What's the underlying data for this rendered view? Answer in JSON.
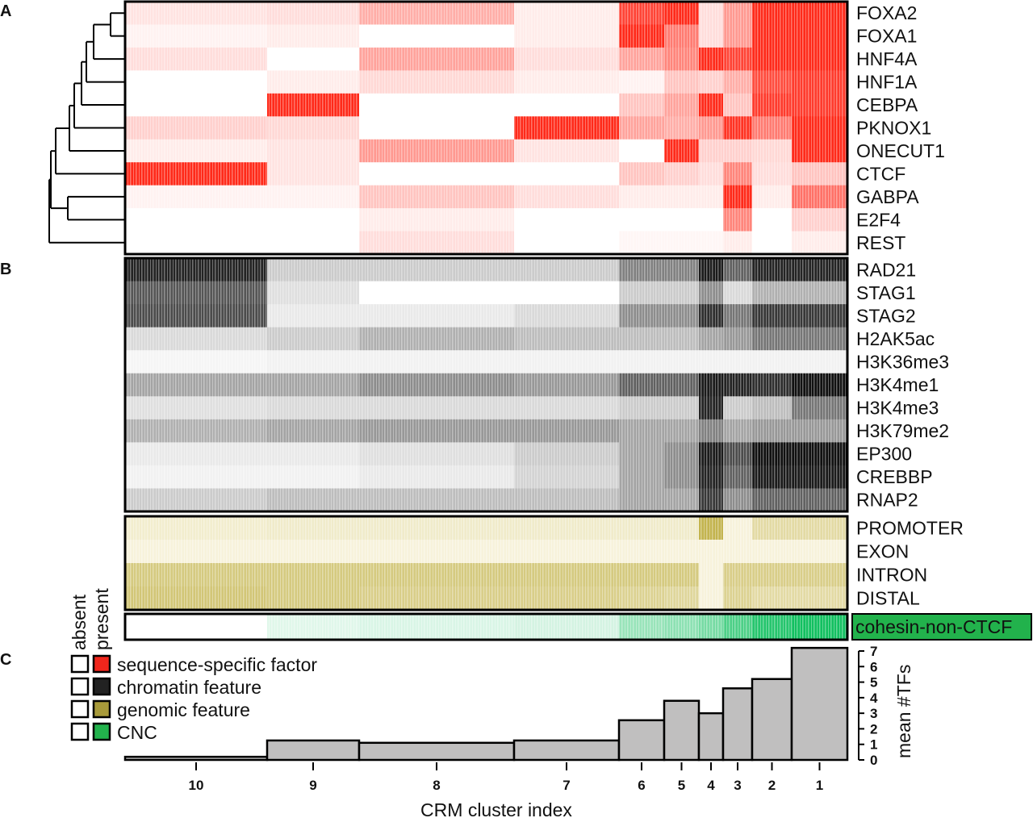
{
  "panels": {
    "a": "A",
    "b": "B",
    "c": "C"
  },
  "legend": {
    "absent": "absent",
    "present": "present",
    "items": [
      {
        "label": "sequence-specific factor",
        "color": "#f0261c"
      },
      {
        "label": "chromatin feature",
        "color": "#222222"
      },
      {
        "label": "genomic feature",
        "color": "#a89a3a"
      },
      {
        "label": "CNC",
        "color": "#22b24c"
      }
    ]
  },
  "chart_data": [
    {
      "type": "heatmap",
      "panel": "A",
      "color": "#ff2a1a",
      "columns": [
        "10",
        "9",
        "8",
        "7",
        "6",
        "5",
        "4",
        "3",
        "2",
        "1"
      ],
      "rows": [
        {
          "label": "FOXA2",
          "values": [
            0.08,
            0.1,
            0.3,
            0.05,
            0.85,
            1,
            0.1,
            0.4,
            1,
            1
          ]
        },
        {
          "label": "FOXA1",
          "values": [
            0.03,
            0.05,
            0,
            0.05,
            1,
            0.55,
            0.1,
            0.4,
            1,
            1
          ]
        },
        {
          "label": "HNF4A",
          "values": [
            0.1,
            0,
            0.35,
            0.1,
            0.35,
            0.5,
            1,
            0.85,
            1,
            1
          ]
        },
        {
          "label": "HNF1A",
          "values": [
            0,
            0.05,
            0.12,
            0.05,
            0.03,
            0.2,
            0.15,
            0.3,
            0.8,
            0.9
          ]
        },
        {
          "label": "CEBPA",
          "values": [
            0,
            1,
            0,
            0,
            0.2,
            0.35,
            1,
            0.2,
            0.9,
            0.9
          ]
        },
        {
          "label": "PKNOX1",
          "values": [
            0.15,
            0.12,
            0,
            1,
            0.35,
            0.3,
            0.4,
            0.95,
            0.55,
            1
          ]
        },
        {
          "label": "ONECUT1",
          "values": [
            0.05,
            0.08,
            0.4,
            0.08,
            0,
            1,
            0.15,
            0.15,
            0.12,
            1
          ]
        },
        {
          "label": "CTCF",
          "values": [
            1,
            0.08,
            0,
            0,
            0.2,
            0.15,
            0.1,
            0.5,
            0.1,
            0.2
          ]
        },
        {
          "label": "GABPA",
          "values": [
            0.03,
            0.03,
            0.2,
            0.1,
            0.05,
            0.05,
            0.05,
            1,
            0.05,
            0.6
          ]
        },
        {
          "label": "E2F4",
          "values": [
            0,
            0,
            0.05,
            0,
            0,
            0,
            0,
            0.5,
            0,
            0.15
          ]
        },
        {
          "label": "REST",
          "values": [
            0,
            0,
            0.1,
            0,
            0.02,
            0.02,
            0.02,
            0.05,
            0,
            0.05
          ]
        }
      ],
      "dendrogram": "hierarchical clustering of rows (left)"
    },
    {
      "type": "heatmap",
      "panel": "B",
      "color": "#111111",
      "columns": [
        "10",
        "9",
        "8",
        "7",
        "6",
        "5",
        "4",
        "3",
        "2",
        "1"
      ],
      "rows": [
        {
          "label": "RAD21",
          "values": [
            0.9,
            0.15,
            0.15,
            0.15,
            0.45,
            0.45,
            0.95,
            0.6,
            0.9,
            0.9
          ]
        },
        {
          "label": "STAG1",
          "values": [
            0.65,
            0.08,
            0,
            0,
            0.15,
            0.15,
            0.4,
            0.1,
            0.25,
            0.25
          ]
        },
        {
          "label": "STAG2",
          "values": [
            0.7,
            0.05,
            0.05,
            0.1,
            0.4,
            0.4,
            0.85,
            0.5,
            0.8,
            0.8
          ]
        },
        {
          "label": "H2AK5ac",
          "values": [
            0.1,
            0.15,
            0.25,
            0.2,
            0.2,
            0.2,
            0.3,
            0.35,
            0.5,
            0.5
          ]
        },
        {
          "label": "H3K36me3",
          "values": [
            0.02,
            0.03,
            0.03,
            0.03,
            0.03,
            0.03,
            0.03,
            0.03,
            0.03,
            0.03
          ]
        },
        {
          "label": "H3K4me1",
          "values": [
            0.3,
            0.3,
            0.4,
            0.35,
            0.6,
            0.6,
            0.95,
            0.9,
            0.85,
            1
          ]
        },
        {
          "label": "H3K4me3",
          "values": [
            0.08,
            0.1,
            0.1,
            0.1,
            0.15,
            0.15,
            0.9,
            0.15,
            0.2,
            0.5
          ]
        },
        {
          "label": "H3K79me2",
          "values": [
            0.25,
            0.3,
            0.35,
            0.35,
            0.3,
            0.3,
            0.45,
            0.3,
            0.35,
            0.35
          ]
        },
        {
          "label": "EP300",
          "values": [
            0.05,
            0.05,
            0.08,
            0.15,
            0.3,
            0.4,
            0.95,
            0.7,
            1,
            1
          ]
        },
        {
          "label": "CREBBP",
          "values": [
            0.03,
            0.03,
            0.05,
            0.12,
            0.3,
            0.4,
            0.9,
            0.6,
            0.95,
            0.95
          ]
        },
        {
          "label": "RNAP2",
          "values": [
            0.15,
            0.2,
            0.2,
            0.2,
            0.3,
            0.3,
            0.8,
            0.4,
            0.6,
            0.6
          ]
        }
      ]
    },
    {
      "type": "heatmap",
      "panel": "B-genomic",
      "color": "#b8a630",
      "columns": [
        "10",
        "9",
        "8",
        "7",
        "6",
        "5",
        "4",
        "3",
        "2",
        "1"
      ],
      "rows": [
        {
          "label": "PROMOTER",
          "values": [
            0.1,
            0.12,
            0.12,
            0.12,
            0.12,
            0.12,
            0.8,
            0.05,
            0.3,
            0.3
          ]
        },
        {
          "label": "EXON",
          "values": [
            0.05,
            0.05,
            0.05,
            0.05,
            0.05,
            0.05,
            0.05,
            0.05,
            0.05,
            0.05
          ]
        },
        {
          "label": "INTRON",
          "values": [
            0.5,
            0.5,
            0.5,
            0.5,
            0.5,
            0.5,
            0.05,
            0.45,
            0.45,
            0.45
          ]
        },
        {
          "label": "DISTAL",
          "values": [
            0.55,
            0.5,
            0.45,
            0.45,
            0.4,
            0.35,
            0.05,
            0.4,
            0.3,
            0.3
          ]
        }
      ]
    },
    {
      "type": "heatmap",
      "panel": "B-cnc",
      "color": "#12c060",
      "label_bg": "#22b24c",
      "columns": [
        "10",
        "9",
        "8",
        "7",
        "6",
        "5",
        "4",
        "3",
        "2",
        "1"
      ],
      "rows": [
        {
          "label": "cohesin-non-CTCF",
          "values": [
            0,
            0.08,
            0.1,
            0.12,
            0.35,
            0.4,
            0.5,
            0.7,
            0.9,
            1
          ]
        }
      ]
    },
    {
      "type": "bar",
      "panel": "C",
      "categories": [
        "10",
        "9",
        "8",
        "7",
        "6",
        "5",
        "4",
        "3",
        "2",
        "1"
      ],
      "values": [
        0.2,
        1.25,
        1.1,
        1.25,
        2.55,
        3.8,
        3.0,
        4.6,
        5.2,
        7.2
      ],
      "bar_color": "#c0bfbf",
      "xlabel": "CRM cluster index",
      "ylabel": "mean #TFs",
      "ylim": [
        0,
        7
      ],
      "yticks": [
        "0",
        "1",
        "2",
        "3",
        "4",
        "5",
        "6",
        "7"
      ],
      "yaxis_side": "right"
    }
  ]
}
